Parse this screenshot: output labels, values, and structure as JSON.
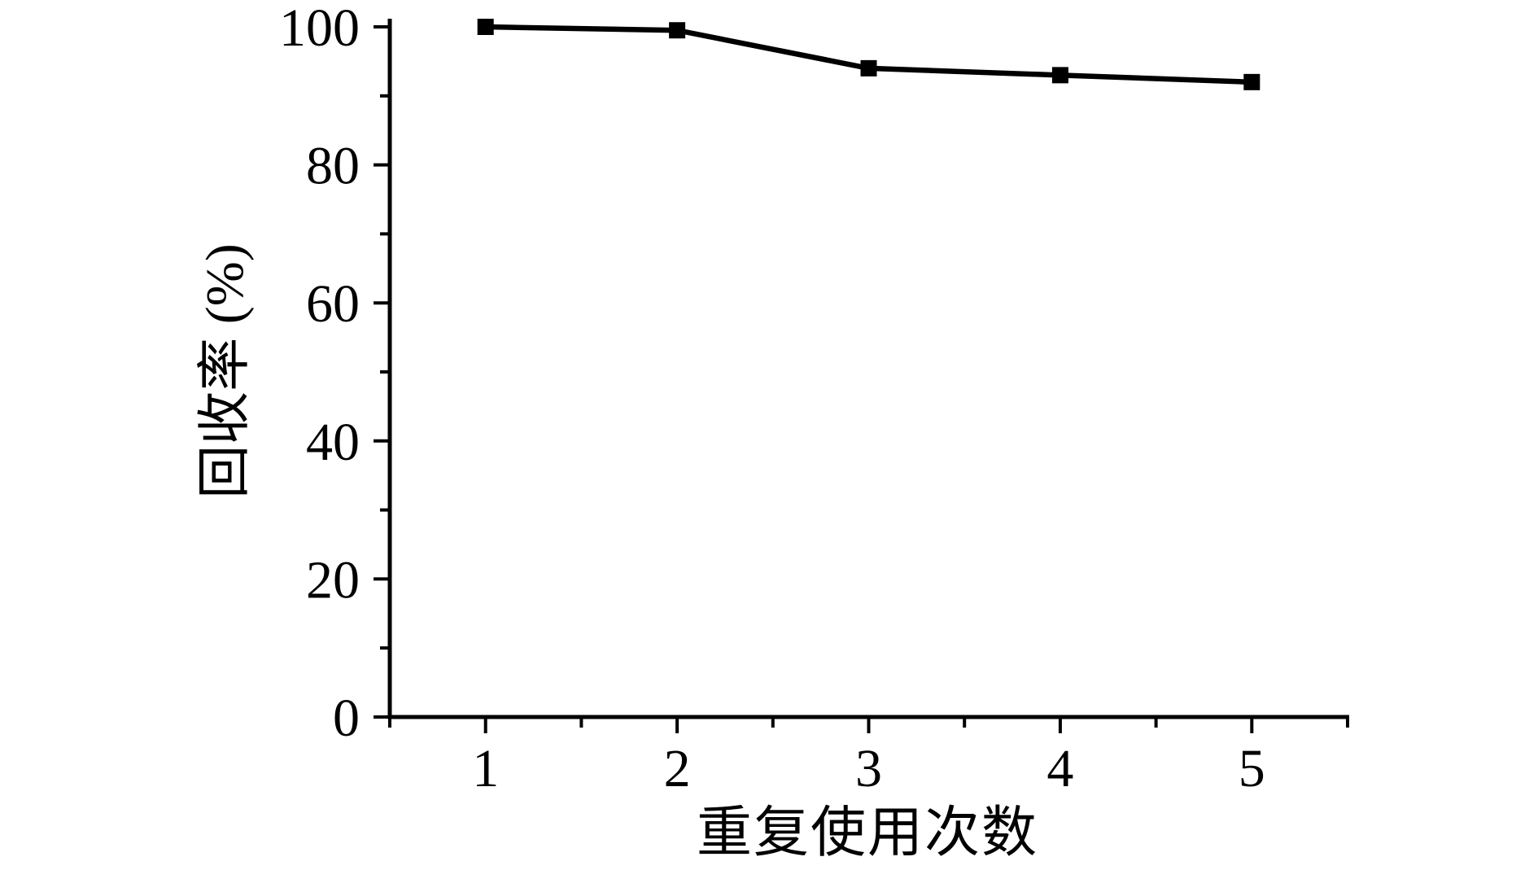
{
  "chart_data": {
    "type": "line",
    "title": "",
    "xlabel": "重复使用次数",
    "ylabel": "回收率 (%)",
    "x": [
      1,
      2,
      3,
      4,
      5
    ],
    "series": [
      {
        "name": "回收率",
        "values": [
          100,
          99.5,
          94,
          93,
          92
        ],
        "color": "#000000",
        "marker": "square"
      }
    ],
    "xlim": [
      0.5,
      5.5
    ],
    "ylim": [
      0,
      101
    ],
    "x_ticks": {
      "major": [
        1,
        2,
        3,
        4,
        5
      ],
      "labels": [
        "1",
        "2",
        "3",
        "4",
        "5"
      ],
      "minor": [
        0.5,
        1.5,
        2.5,
        3.5,
        4.5,
        5.5
      ]
    },
    "y_ticks": {
      "major": [
        0,
        20,
        40,
        60,
        80,
        100
      ],
      "labels": [
        "0",
        "20",
        "40",
        "60",
        "80",
        "100"
      ],
      "minor": [
        10,
        30,
        50,
        70,
        90
      ]
    },
    "grid": false,
    "legend": "none",
    "background": "#ffffff",
    "axis_color": "#000000",
    "spines": [
      "left",
      "bottom"
    ]
  }
}
